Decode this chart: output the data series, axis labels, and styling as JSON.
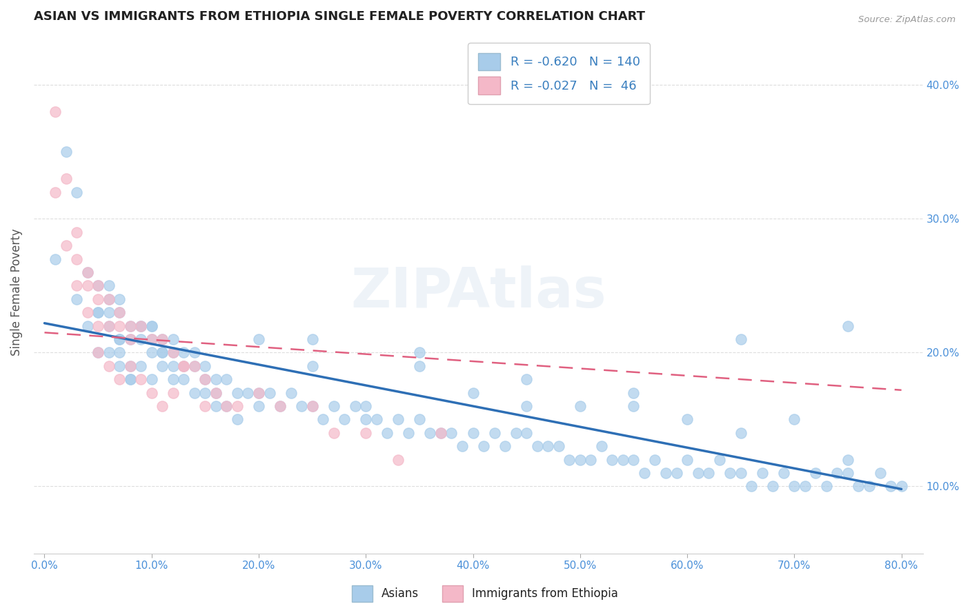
{
  "title": "ASIAN VS IMMIGRANTS FROM ETHIOPIA SINGLE FEMALE POVERTY CORRELATION CHART",
  "source": "Source: ZipAtlas.com",
  "ylabel": "Single Female Poverty",
  "xlim": [
    -0.01,
    0.82
  ],
  "ylim": [
    0.05,
    0.44
  ],
  "xticks": [
    0.0,
    0.1,
    0.2,
    0.3,
    0.4,
    0.5,
    0.6,
    0.7,
    0.8
  ],
  "xticklabels": [
    "0.0%",
    "10.0%",
    "20.0%",
    "30.0%",
    "40.0%",
    "50.0%",
    "60.0%",
    "70.0%",
    "80.0%"
  ],
  "yticks_right": [
    0.1,
    0.2,
    0.3,
    0.4
  ],
  "yticklabels_right": [
    "10.0%",
    "20.0%",
    "30.0%",
    "40.0%"
  ],
  "watermark": "ZIPAtlas",
  "blue_color": "#A8CCEA",
  "pink_color": "#F4B8C8",
  "blue_line_color": "#2E6FB5",
  "pink_line_color": "#E06080",
  "legend_R1": "-0.620",
  "legend_N1": "140",
  "legend_R2": "-0.027",
  "legend_N2": " 46",
  "blue_scatter_x": [
    0.01,
    0.02,
    0.03,
    0.03,
    0.04,
    0.04,
    0.05,
    0.05,
    0.05,
    0.06,
    0.06,
    0.06,
    0.06,
    0.07,
    0.07,
    0.07,
    0.07,
    0.07,
    0.08,
    0.08,
    0.08,
    0.08,
    0.09,
    0.09,
    0.09,
    0.1,
    0.1,
    0.1,
    0.1,
    0.11,
    0.11,
    0.11,
    0.12,
    0.12,
    0.12,
    0.13,
    0.13,
    0.14,
    0.14,
    0.15,
    0.15,
    0.16,
    0.16,
    0.17,
    0.17,
    0.18,
    0.18,
    0.19,
    0.2,
    0.2,
    0.21,
    0.22,
    0.23,
    0.24,
    0.25,
    0.26,
    0.27,
    0.28,
    0.29,
    0.3,
    0.31,
    0.32,
    0.33,
    0.34,
    0.35,
    0.36,
    0.37,
    0.38,
    0.39,
    0.4,
    0.41,
    0.42,
    0.43,
    0.44,
    0.45,
    0.46,
    0.47,
    0.48,
    0.49,
    0.5,
    0.51,
    0.52,
    0.53,
    0.54,
    0.55,
    0.56,
    0.57,
    0.58,
    0.59,
    0.6,
    0.61,
    0.62,
    0.63,
    0.64,
    0.65,
    0.66,
    0.67,
    0.68,
    0.69,
    0.7,
    0.71,
    0.72,
    0.73,
    0.74,
    0.75,
    0.76,
    0.77,
    0.78,
    0.79,
    0.8,
    0.25,
    0.35,
    0.45,
    0.55,
    0.65,
    0.75,
    0.5,
    0.6,
    0.7,
    0.4,
    0.3,
    0.2,
    0.1,
    0.15,
    0.25,
    0.35,
    0.45,
    0.55,
    0.65,
    0.75,
    0.05,
    0.07,
    0.09,
    0.11,
    0.13,
    0.06,
    0.08,
    0.12,
    0.14,
    0.16
  ],
  "blue_scatter_y": [
    0.27,
    0.35,
    0.32,
    0.24,
    0.26,
    0.22,
    0.25,
    0.23,
    0.2,
    0.24,
    0.23,
    0.22,
    0.2,
    0.24,
    0.23,
    0.21,
    0.2,
    0.19,
    0.22,
    0.21,
    0.19,
    0.18,
    0.22,
    0.21,
    0.19,
    0.22,
    0.21,
    0.2,
    0.18,
    0.21,
    0.2,
    0.19,
    0.2,
    0.19,
    0.18,
    0.2,
    0.18,
    0.19,
    0.17,
    0.19,
    0.17,
    0.18,
    0.16,
    0.18,
    0.16,
    0.17,
    0.15,
    0.17,
    0.17,
    0.16,
    0.17,
    0.16,
    0.17,
    0.16,
    0.16,
    0.15,
    0.16,
    0.15,
    0.16,
    0.15,
    0.15,
    0.14,
    0.15,
    0.14,
    0.15,
    0.14,
    0.14,
    0.14,
    0.13,
    0.14,
    0.13,
    0.14,
    0.13,
    0.14,
    0.14,
    0.13,
    0.13,
    0.13,
    0.12,
    0.12,
    0.12,
    0.13,
    0.12,
    0.12,
    0.12,
    0.11,
    0.12,
    0.11,
    0.11,
    0.12,
    0.11,
    0.11,
    0.12,
    0.11,
    0.11,
    0.1,
    0.11,
    0.1,
    0.11,
    0.1,
    0.1,
    0.11,
    0.1,
    0.11,
    0.11,
    0.1,
    0.1,
    0.11,
    0.1,
    0.1,
    0.21,
    0.19,
    0.18,
    0.17,
    0.21,
    0.22,
    0.16,
    0.15,
    0.15,
    0.17,
    0.16,
    0.21,
    0.22,
    0.18,
    0.19,
    0.2,
    0.16,
    0.16,
    0.14,
    0.12,
    0.23,
    0.21,
    0.22,
    0.2,
    0.19,
    0.25,
    0.18,
    0.21,
    0.2,
    0.17
  ],
  "pink_scatter_x": [
    0.01,
    0.01,
    0.02,
    0.02,
    0.03,
    0.03,
    0.03,
    0.04,
    0.04,
    0.04,
    0.05,
    0.05,
    0.05,
    0.05,
    0.06,
    0.06,
    0.06,
    0.07,
    0.07,
    0.07,
    0.08,
    0.08,
    0.08,
    0.09,
    0.09,
    0.1,
    0.1,
    0.11,
    0.11,
    0.12,
    0.12,
    0.13,
    0.13,
    0.14,
    0.15,
    0.15,
    0.16,
    0.17,
    0.18,
    0.2,
    0.22,
    0.25,
    0.27,
    0.3,
    0.33,
    0.37
  ],
  "pink_scatter_y": [
    0.38,
    0.32,
    0.33,
    0.28,
    0.29,
    0.27,
    0.25,
    0.26,
    0.25,
    0.23,
    0.25,
    0.24,
    0.22,
    0.2,
    0.24,
    0.22,
    0.19,
    0.23,
    0.22,
    0.18,
    0.22,
    0.21,
    0.19,
    0.22,
    0.18,
    0.21,
    0.17,
    0.21,
    0.16,
    0.2,
    0.17,
    0.19,
    0.19,
    0.19,
    0.18,
    0.16,
    0.17,
    0.16,
    0.16,
    0.17,
    0.16,
    0.16,
    0.14,
    0.14,
    0.12,
    0.14
  ],
  "blue_line_start_x": 0.0,
  "blue_line_end_x": 0.8,
  "blue_line_start_y": 0.222,
  "blue_line_end_y": 0.098,
  "pink_line_start_x": 0.0,
  "pink_line_end_x": 0.8,
  "pink_line_start_y": 0.215,
  "pink_line_end_y": 0.172,
  "background_color": "#FFFFFF",
  "grid_color": "#DDDDDD"
}
